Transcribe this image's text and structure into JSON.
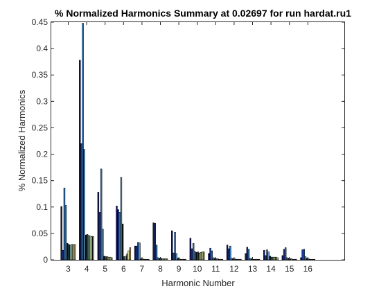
{
  "chart_data": {
    "type": "bar",
    "title": "% Normalized Harmonics Summary at 0.02697 for run hardat.ru1",
    "xlabel": "Harmonic Number",
    "ylabel": "% Normalized Harmonics",
    "categories": [
      "3",
      "4",
      "5",
      "6",
      "7",
      "8",
      "9",
      "10",
      "11",
      "12",
      "13",
      "14",
      "15",
      "16"
    ],
    "ylim": [
      0,
      0.45
    ],
    "yticks": [
      0,
      0.05,
      0.1,
      0.15,
      0.2,
      0.25,
      0.3,
      0.35,
      0.4,
      0.45
    ],
    "ytick_labels": [
      "0",
      "0.05",
      "0.1",
      "0.15",
      "0.2",
      "0.25",
      "0.3",
      "0.35",
      "0.4",
      "0.45"
    ],
    "grid": false,
    "bar_colors": [
      "#1a1a6e",
      "#1f3fa8",
      "#2e7fd0",
      "#6aa8d8",
      "#0f0f0f",
      "#3a5a6a",
      "#7bb0a0",
      "#a8c890",
      "#e8e0a0",
      "#c8b070"
    ],
    "values": [
      [
        0.101,
        0.018,
        0.136,
        0.103,
        0.031,
        0.029,
        0.028,
        0.029,
        0.029,
        0.029
      ],
      [
        0.378,
        0.22,
        0.448,
        0.209,
        0.047,
        0.048,
        0.046,
        0.045,
        0.044,
        0.044
      ],
      [
        0.128,
        0.09,
        0.172,
        0.058,
        0.007,
        0.006,
        0.006,
        0.005,
        0.005,
        0.004
      ],
      [
        0.102,
        0.095,
        0.09,
        0.156,
        0.068,
        0.006,
        0.007,
        0.011,
        0.017,
        0.023
      ],
      [
        0.026,
        0.026,
        0.033,
        0.032,
        0.002,
        0.002,
        0.001,
        0.001,
        0.001,
        0.001
      ],
      [
        0.07,
        0.069,
        0.028,
        0.004,
        0.003,
        0.003,
        0.002,
        0.002,
        0.002,
        0.002
      ],
      [
        0.055,
        0.013,
        0.052,
        0.012,
        0.003,
        0.002,
        0.001,
        0.001,
        0.001,
        0.001
      ],
      [
        0.041,
        0.021,
        0.031,
        0.016,
        0.014,
        0.015,
        0.013,
        0.014,
        0.015,
        0.015
      ],
      [
        0.012,
        0.022,
        0.017,
        0.004,
        0.003,
        0.002,
        0.002,
        0.001,
        0.001,
        0.001
      ],
      [
        0.028,
        0.021,
        0.026,
        0.003,
        0.002,
        0.002,
        0.001,
        0.001,
        0.001,
        0.001
      ],
      [
        0.012,
        0.024,
        0.02,
        0.003,
        0.002,
        0.001,
        0.001,
        0.001,
        0.001,
        0.001
      ],
      [
        0.018,
        0.008,
        0.019,
        0.015,
        0.007,
        0.005,
        0.005,
        0.005,
        0.005,
        0.004
      ],
      [
        0.008,
        0.02,
        0.023,
        0.004,
        0.003,
        0.002,
        0.002,
        0.001,
        0.001,
        0.001
      ],
      [
        0.004,
        0.019,
        0.02,
        0.006,
        0.003,
        0.002,
        0.001,
        0.001,
        0.001,
        0.001
      ]
    ]
  }
}
